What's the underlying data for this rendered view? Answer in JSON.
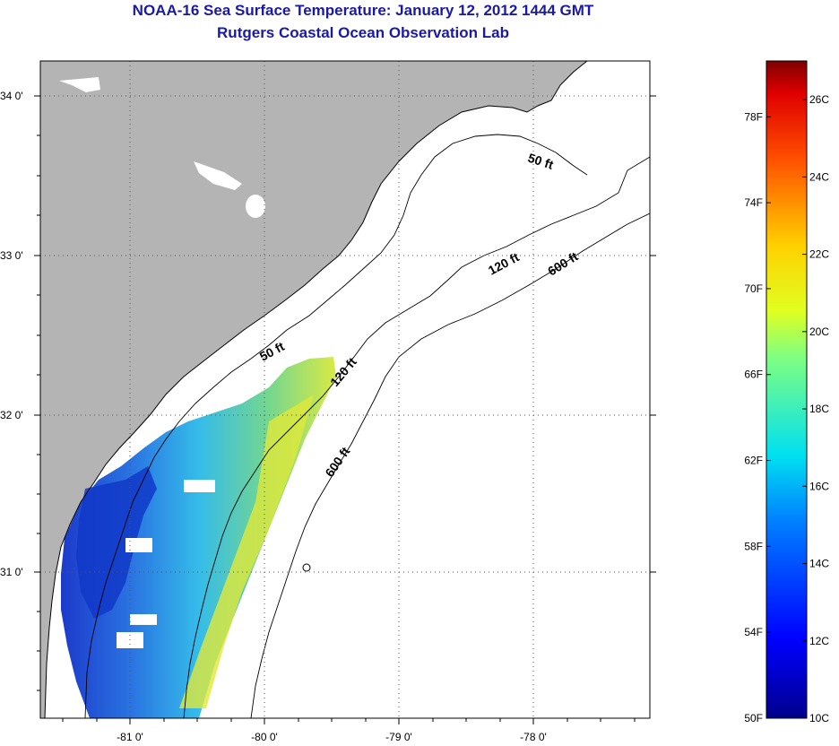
{
  "title": "NOAA-16 Sea Surface Temperature:  January 12, 2012 1444 GMT",
  "subtitle": "Rutgers Coastal Ocean Observation Lab",
  "lat_ticks": [
    "34 0'",
    "33 0'",
    "32 0'",
    "31 0'"
  ],
  "lon_ticks": [
    "-81 0'",
    "-80 0'",
    "-79 0'",
    "-78 0'"
  ],
  "contours": {
    "c50a": "50 ft",
    "c50b": "50 ft",
    "c120a": "120 ft",
    "c120b": "120 ft",
    "c600a": "600 ft",
    "c600b": "600 ft"
  },
  "colorbar": {
    "fahrenheit": [
      "78F",
      "74F",
      "70F",
      "66F",
      "62F",
      "58F",
      "54F",
      "50F"
    ],
    "celsius": [
      "26C",
      "24C",
      "22C",
      "20C",
      "18C",
      "16C",
      "14C",
      "12C",
      "10C"
    ],
    "min_c": 10,
    "max_c": 27
  },
  "colors": {
    "land": "#b4b4b4",
    "ocean": "#ffffff",
    "title": "#1a1aa6"
  }
}
